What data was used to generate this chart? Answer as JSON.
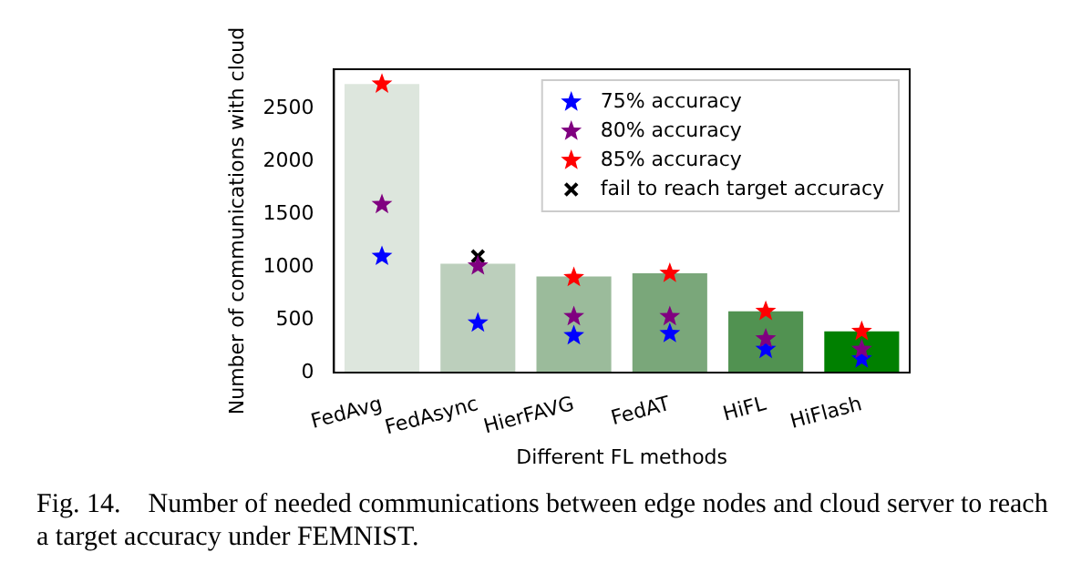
{
  "chart_data": {
    "type": "bar",
    "categories": [
      "FedAvg",
      "FedAsync",
      "HierFAVG",
      "FedAT",
      "HiFL",
      "HiFlash"
    ],
    "values": [
      2730,
      1030,
      910,
      940,
      580,
      390
    ],
    "colors": [
      "#dde6dd",
      "#bccfbc",
      "#9bbb9b",
      "#7aa77a",
      "#519251",
      "#008000"
    ],
    "series": [
      {
        "name": "75% accuracy",
        "type": "scatter",
        "marker": "star",
        "color": "#0000ff",
        "x": [
          "FedAvg",
          "FedAsync",
          "HierFAVG",
          "FedAT",
          "HiFL",
          "HiFlash"
        ],
        "values": [
          1100,
          470,
          350,
          370,
          220,
          130
        ]
      },
      {
        "name": "80% accuracy",
        "type": "scatter",
        "marker": "star",
        "color": "#800080",
        "x": [
          "FedAvg",
          "FedAsync",
          "HierFAVG",
          "FedAT",
          "HiFL",
          "HiFlash"
        ],
        "values": [
          1590,
          1010,
          530,
          530,
          320,
          220
        ]
      },
      {
        "name": "85% accuracy",
        "type": "scatter",
        "marker": "star",
        "color": "#ff0000",
        "x": [
          "FedAvg",
          "HierFAVG",
          "FedAT",
          "HiFL",
          "HiFlash"
        ],
        "values": [
          2730,
          900,
          940,
          580,
          390
        ]
      },
      {
        "name": "fail to reach target accuracy",
        "type": "scatter",
        "marker": "cross",
        "color": "#000000",
        "x": [
          "FedAsync"
        ],
        "values": [
          1100
        ]
      }
    ],
    "xlabel": "Different FL methods",
    "ylabel": "Number of communications with cloud",
    "ylim": [
      0,
      2870
    ],
    "yticks": [
      0,
      500,
      1000,
      1500,
      2000,
      2500
    ],
    "legend": "top right",
    "grid": false,
    "annotations": [
      "Fig. 14.    Number of needed communications between edge nodes and cloud server to reach a target accuracy under FEMNIST."
    ]
  }
}
